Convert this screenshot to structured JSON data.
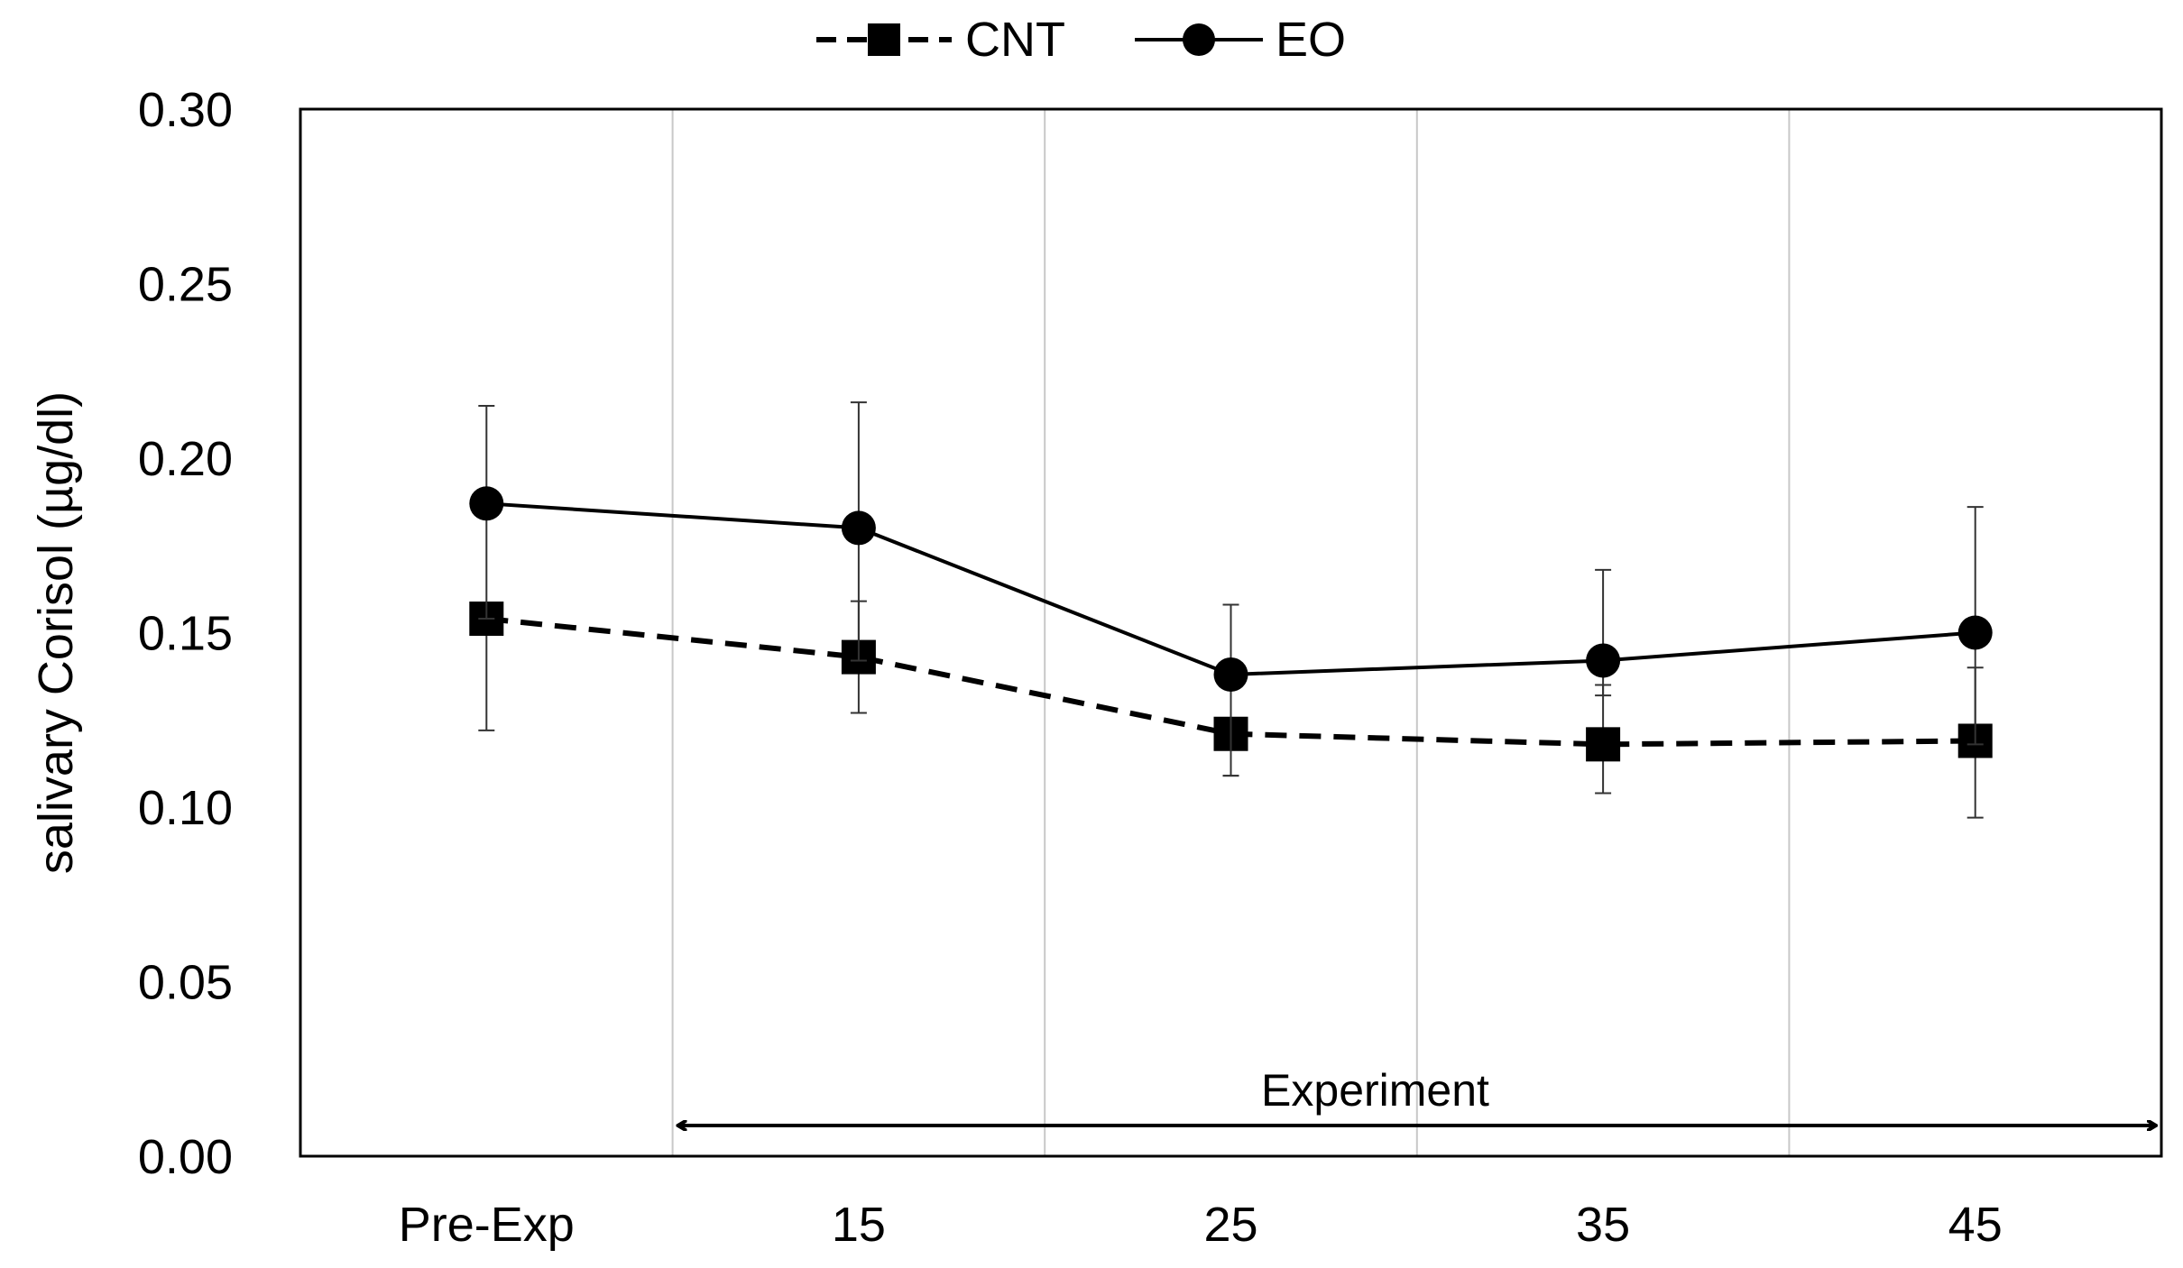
{
  "chart_data": {
    "type": "line",
    "title": "",
    "xlabel": "",
    "ylabel": "salivary Corisol (µg/dl)",
    "categories": [
      "Pre-Exp",
      "15",
      "25",
      "35",
      "45"
    ],
    "ylim": [
      0,
      0.3
    ],
    "yticks": [
      "0.00",
      "0.05",
      "0.10",
      "0.15",
      "0.20",
      "0.25",
      "0.30"
    ],
    "ytick_values": [
      0,
      0.05,
      0.1,
      0.15,
      0.2,
      0.25,
      0.3
    ],
    "grid": "vertical",
    "legend_position": "top-center",
    "series": [
      {
        "name": "CNT",
        "marker": "square",
        "line_style": "dashed",
        "values": [
          0.154,
          0.143,
          0.121,
          0.118,
          0.119
        ],
        "error_low": [
          0.122,
          0.127,
          0.109,
          0.104,
          0.097
        ],
        "error_high": [
          0.156,
          0.159,
          0.137,
          0.135,
          0.14
        ]
      },
      {
        "name": "EO",
        "marker": "circle",
        "line_style": "solid",
        "values": [
          0.187,
          0.18,
          0.138,
          0.142,
          0.15
        ],
        "error_low": [
          0.154,
          0.142,
          0.109,
          0.132,
          0.118
        ],
        "error_high": [
          0.215,
          0.216,
          0.158,
          0.168,
          0.186
        ]
      }
    ],
    "annotations": [
      {
        "text": "Experiment",
        "type": "double-arrow",
        "from_category_boundary": 1,
        "to_category_boundary": 5
      }
    ]
  }
}
